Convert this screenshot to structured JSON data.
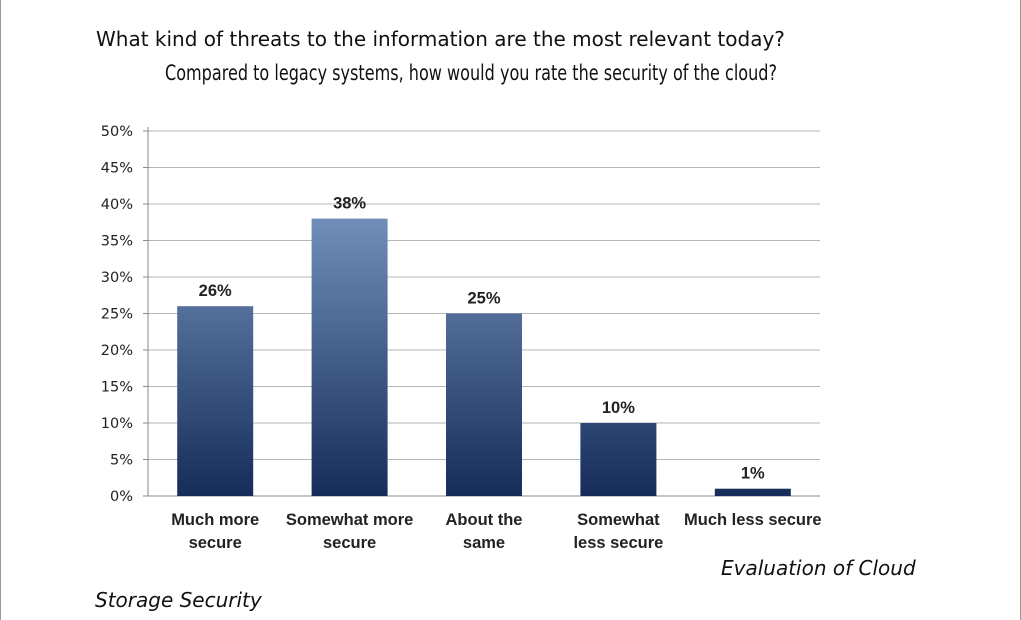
{
  "page": {
    "question": "What kind of threats to the information are the most relevant today?",
    "caption_right": "Evaluation of Cloud",
    "caption_left": "Storage Security"
  },
  "chart_data": {
    "type": "bar",
    "title": "Compared to legacy systems, how would you rate the security of the cloud?",
    "categories": [
      [
        "Much more",
        "secure"
      ],
      [
        "Somewhat more",
        "secure"
      ],
      [
        "About the",
        "same"
      ],
      [
        "Somewhat",
        "less secure"
      ],
      [
        "Much less secure"
      ]
    ],
    "values": [
      26,
      38,
      25,
      10,
      1
    ],
    "data_labels": [
      "26%",
      "38%",
      "25%",
      "10%",
      "1%"
    ],
    "ylim": [
      0,
      50
    ],
    "yticks": [
      0,
      5,
      10,
      15,
      20,
      25,
      30,
      35,
      40,
      45,
      50
    ],
    "ytick_labels": [
      "0%",
      "5%",
      "10%",
      "15%",
      "20%",
      "25%",
      "30%",
      "35%",
      "40%",
      "45%",
      "50%"
    ],
    "grid": true,
    "xlabel": "",
    "ylabel": "",
    "colors": {
      "bar_top": "#8DAFD8",
      "bar_bottom": "#162C5A",
      "grid": "#B5B5B5",
      "axis": "#8A8A8A"
    }
  }
}
